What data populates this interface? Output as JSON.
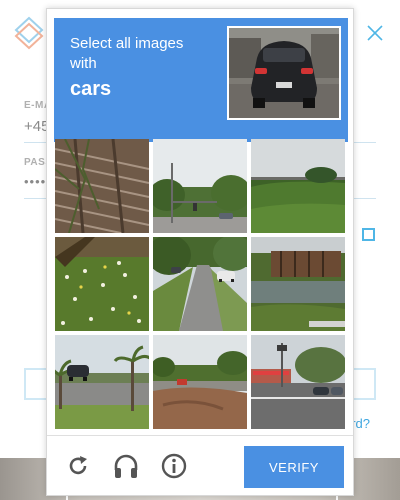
{
  "background_page": {
    "email_label": "E-MA",
    "email_value": "+45",
    "password_label": "PASS",
    "password_value": "••••",
    "link_text": "ord?"
  },
  "captcha": {
    "instruction_line1": "Select all images",
    "instruction_line2": "with",
    "target_object": "cars",
    "sample_image": "car-rear-view",
    "tiles": [
      {
        "description": "train-tracks-tree"
      },
      {
        "description": "road-with-traffic-light"
      },
      {
        "description": "grassy-hill-sky"
      },
      {
        "description": "flowers-grass"
      },
      {
        "description": "street-with-cars"
      },
      {
        "description": "bridge-over-water"
      },
      {
        "description": "palm-trees-parking-lot"
      },
      {
        "description": "dirt-construction-area"
      },
      {
        "description": "intersection-with-cars"
      }
    ],
    "icons": [
      "reload-icon",
      "audio-headphones-icon",
      "info-icon"
    ],
    "verify_label": "VERIFY"
  },
  "colors": {
    "accent": "#4a90e2",
    "background_link": "#3ea6e0"
  }
}
